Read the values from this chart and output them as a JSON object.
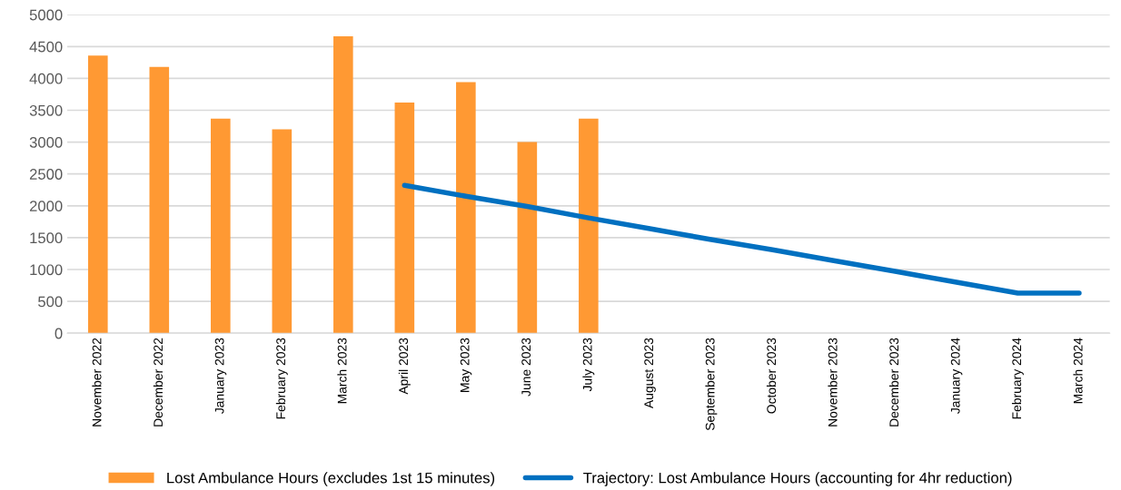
{
  "chart_data": {
    "type": "bar",
    "categories": [
      "November 2022",
      "December 2022",
      "January 2023",
      "February 2023",
      "March 2023",
      "April 2023",
      "May 2023",
      "June 2023",
      "July 2023",
      "August 2023",
      "September 2023",
      "October 2023",
      "November 2023",
      "December 2023",
      "January 2024",
      "February 2024",
      "March 2024"
    ],
    "series": [
      {
        "name": "Lost Ambulance Hours (excludes 1st 15 minutes)",
        "color": "#ff9933",
        "values": [
          4360,
          4180,
          3370,
          3200,
          4660,
          3620,
          3940,
          3000,
          3370,
          null,
          null,
          null,
          null,
          null,
          null,
          null,
          null
        ]
      },
      {
        "name": "Trajectory: Lost Ambulance Hours (accounting for 4hr reduction)",
        "color": "#0070c0",
        "type": "line",
        "values": [
          null,
          null,
          null,
          null,
          null,
          2320,
          2150,
          1990,
          1810,
          1640,
          1470,
          1310,
          1140,
          970,
          800,
          630,
          630
        ]
      }
    ],
    "ylim": [
      0,
      5000
    ],
    "yticks": [
      0,
      500,
      1000,
      1500,
      2000,
      2500,
      3000,
      3500,
      4000,
      4500,
      5000
    ],
    "grid": "y",
    "legend": "bottom"
  }
}
